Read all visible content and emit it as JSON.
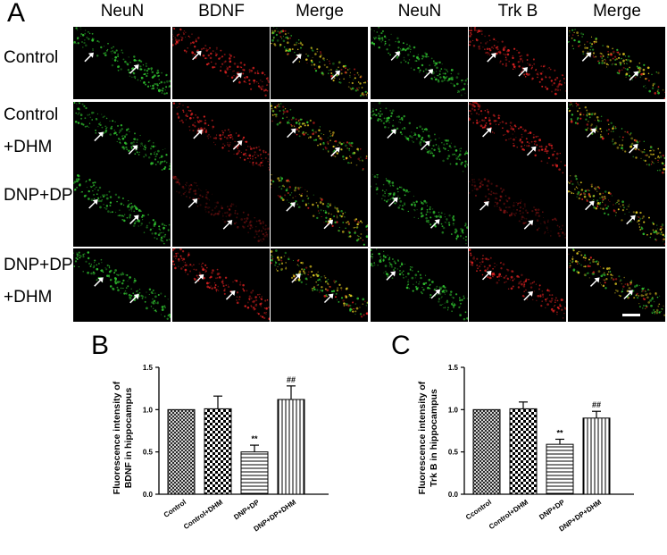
{
  "figure": {
    "panel_a_letter": "A",
    "panel_b_letter": "B",
    "panel_c_letter": "C",
    "column_headers": [
      "NeuN",
      "BDNF",
      "Merge",
      "NeuN",
      "Trk B",
      "Merge"
    ],
    "row_labels": [
      {
        "line1": "Control",
        "line2": ""
      },
      {
        "line1": "Control",
        "line2": "+DHM"
      },
      {
        "line1": "DNP+DP",
        "line2": ""
      },
      {
        "line1": "DNP+DP",
        "line2": "+DHM"
      }
    ],
    "channel_colors": {
      "NeuN": "#2fbf2f",
      "BDNF": "#d42020",
      "TrkB": "#d42020",
      "Merge": "#d8c020"
    }
  },
  "chart_data": [
    {
      "type": "bar",
      "panel": "B",
      "ylabel": "Fluorescence intensity of BDNF in  hippocampus",
      "categories": [
        "Control",
        "Control+DHM",
        "DNP+DP",
        "DNP+DP+DHM"
      ],
      "values": [
        1.0,
        1.01,
        0.5,
        1.12
      ],
      "errors": [
        0,
        0.15,
        0.08,
        0.16
      ],
      "annotations": [
        "",
        "",
        "**",
        "##"
      ],
      "patterns": [
        "crosshatch",
        "checker",
        "horizontal",
        "vertical"
      ],
      "ylim": [
        0,
        1.5
      ],
      "yticks": [
        "0.0",
        "0.5",
        "1.0",
        "1.5"
      ]
    },
    {
      "type": "bar",
      "panel": "C",
      "ylabel": "Fluorescence intensity of Trk B in  hippocampus",
      "categories": [
        "Ccontrol",
        "Control+DHM",
        "DNP+DP",
        "DNP+DP+DHM"
      ],
      "values": [
        1.0,
        1.01,
        0.59,
        0.9
      ],
      "errors": [
        0,
        0.08,
        0.06,
        0.08
      ],
      "annotations": [
        "",
        "",
        "**",
        "##"
      ],
      "patterns": [
        "crosshatch",
        "checker",
        "horizontal",
        "vertical"
      ],
      "ylim": [
        0,
        1.5
      ],
      "yticks": [
        "0.0",
        "0.5",
        "1.0",
        "1.5"
      ]
    }
  ]
}
